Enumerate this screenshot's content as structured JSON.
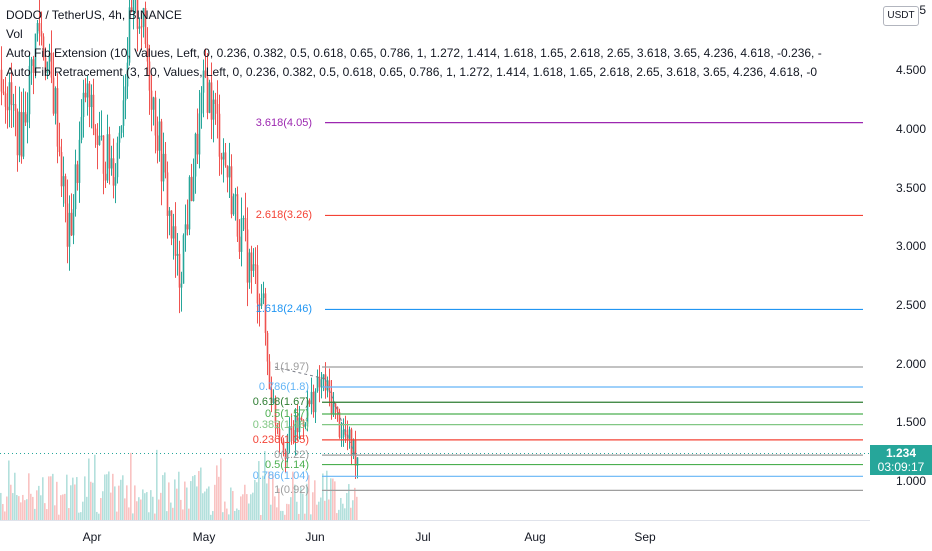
{
  "legend": {
    "symbol": "DODO / TetherUS, 4h, BINANCE",
    "vol": "Vol",
    "ext": "Auto Fib Extension (10, Values, Left, 0, 0.236, 0.382, 0.5, 0.618, 0.65, 0.786, 1, 1.272, 1.414, 1.618, 1.65, 2.618, 2.65, 3.618, 3.65, 4.236, 4.618, -0.236, -",
    "ret": "Auto Fib Retracement (3, 10, Values, Left, 0, 0.236, 0.382, 0.5, 0.618, 0.65, 0.786, 1, 1.272, 1.414, 1.618, 1.65, 2.618, 2.65, 3.618, 3.65, 4.236, 4.618, -0"
  },
  "currency": "USDT",
  "price_axis": [
    "5",
    "4.500",
    "4.000",
    "3.500",
    "3.000",
    "2.500",
    "2.000",
    "1.500",
    "1.000"
  ],
  "current_price": "1.234",
  "countdown": "03:09:17",
  "time_axis": [
    "Apr",
    "May",
    "Jun",
    "Jul",
    "Aug",
    "Sep"
  ],
  "fib_ext": [
    {
      "label": "3.618(4.05)",
      "price": 4.05,
      "color": "#9c27b0"
    },
    {
      "label": "2.618(3.26)",
      "price": 3.26,
      "color": "#f44336"
    },
    {
      "label": "1.618(2.46)",
      "price": 2.46,
      "color": "#2196f3"
    },
    {
      "label": "1(1.97)",
      "price": 1.97,
      "color": "#9e9e9e"
    },
    {
      "label": "0.786(1.8)",
      "price": 1.8,
      "color": "#64b5f6"
    },
    {
      "label": "0.618(1.67)",
      "price": 1.67,
      "color": "#2e7d32"
    },
    {
      "label": "0.5(1.57)",
      "price": 1.57,
      "color": "#4caf50"
    },
    {
      "label": "0.382(1.48)",
      "price": 1.48,
      "color": "#81c784"
    },
    {
      "label": "0.236(1.35)",
      "price": 1.35,
      "color": "#f44336"
    },
    {
      "label": "0(1.22)",
      "price": 1.22,
      "color": "#9e9e9e"
    },
    {
      "label": "0.5(1.14)",
      "price": 1.14,
      "color": "#4caf50"
    },
    {
      "label": "0.786(1.04)",
      "price": 1.04,
      "color": "#64b5f6"
    },
    {
      "label": "1(0.92)",
      "price": 0.92,
      "color": "#9e9e9e"
    }
  ],
  "colors": {
    "up": "#26a69a",
    "down": "#ef5350",
    "current": "#26a69a"
  }
}
